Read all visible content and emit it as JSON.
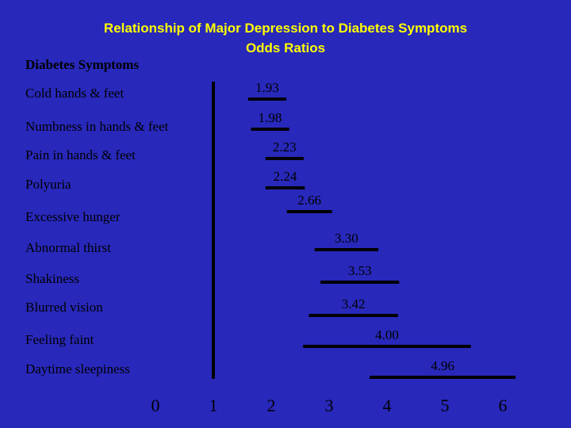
{
  "chart_data": {
    "type": "bar",
    "title": "Relationship of Major Depression to Diabetes Symptoms",
    "subtitle": "Odds Ratios",
    "ylabel": "Diabetes Symptoms",
    "xlim": [
      0,
      6
    ],
    "reference_line": 1,
    "x_ticks": [
      "0",
      "1",
      "2",
      "3",
      "4",
      "5",
      "6"
    ],
    "categories": [
      "Cold hands & feet",
      "Numbness in hands & feet",
      "Pain in hands & feet",
      "Polyuria",
      "Excessive hunger",
      "Abnormal thirst",
      "Shakiness",
      "Blurred vision",
      "Feeling faint",
      "Daytime sleepiness"
    ],
    "values": [
      1.93,
      1.98,
      2.23,
      2.24,
      2.66,
      3.3,
      3.53,
      3.42,
      4.0,
      4.96
    ],
    "value_labels": [
      "1.93",
      "1.98",
      "2.23",
      "2.24",
      "2.66",
      "3.30",
      "3.53",
      "3.42",
      "4.00",
      "4.96"
    ],
    "ci_lower": [
      1.6,
      1.65,
      1.9,
      1.9,
      2.27,
      2.75,
      2.85,
      2.65,
      2.55,
      3.7
    ],
    "ci_upper": [
      2.26,
      2.31,
      2.56,
      2.58,
      3.05,
      3.85,
      4.21,
      4.19,
      5.45,
      6.22
    ],
    "colors": {
      "background": "#2828bb",
      "title": "#ffff00",
      "text": "#000000",
      "bar": "#000000"
    }
  }
}
